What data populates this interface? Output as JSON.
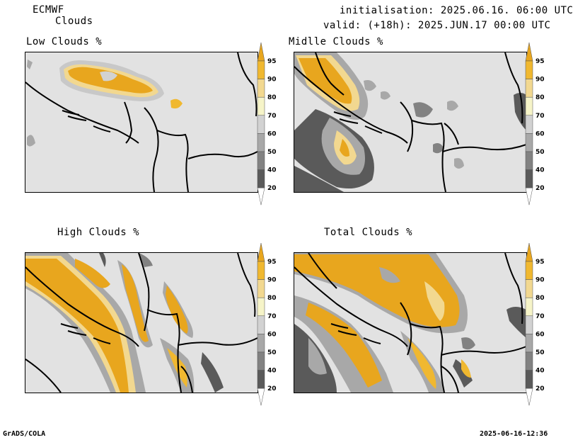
{
  "header": {
    "model": "ECMWF",
    "parameter": "Clouds",
    "init_line": "initialisation: 2025.06.16. 06:00 UTC",
    "valid_line": "valid: (+18h): 2025.JUN.17 00:00 UTC"
  },
  "panels": [
    {
      "id": "low",
      "title": "Low Clouds %"
    },
    {
      "id": "middle",
      "title": "Midlle Clouds %"
    },
    {
      "id": "high",
      "title": "High Clouds %"
    },
    {
      "id": "total",
      "title": "Total Clouds %"
    }
  ],
  "colorbar": {
    "levels": [
      "95",
      "90",
      "80",
      "70",
      "60",
      "50",
      "40",
      "20"
    ],
    "colors": {
      "c95": "#e8a61e",
      "c90": "#f0b830",
      "c80": "#f2d890",
      "c70": "#f6f4c8",
      "c60": "#d2d2d2",
      "c50": "#a8a8a8",
      "c40": "#828282",
      "c20": "#5a5a5a",
      "bottom": "#ffffff"
    }
  },
  "footer": {
    "left": "GrADS/COLA",
    "right": "2025-06-16-12:36"
  }
}
